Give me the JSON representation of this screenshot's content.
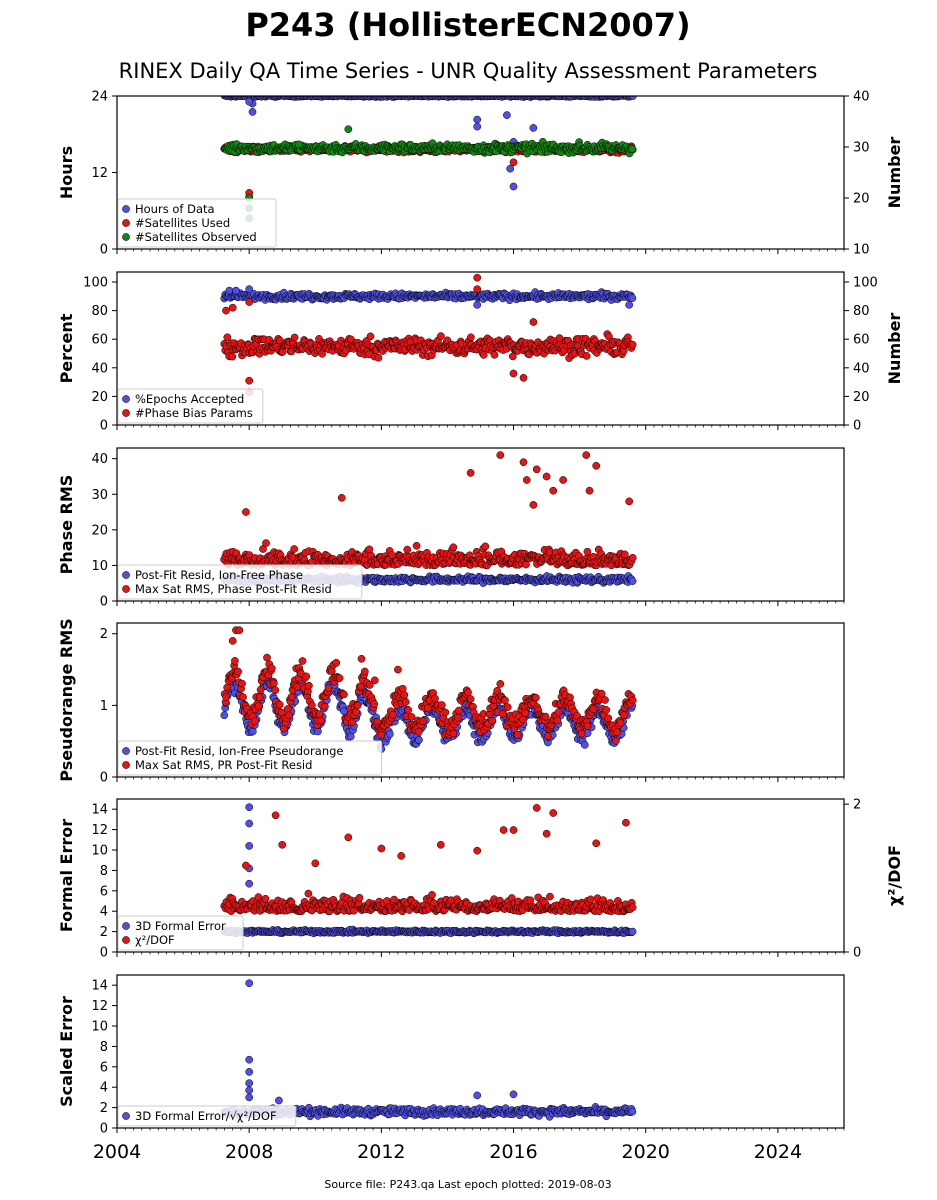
{
  "figure": {
    "title": "P243 (HollisterECN2007)",
    "subtitle": "RINEX Daily QA Time Series - UNR Quality Assessment Parameters",
    "footer": "Source file: P243.qa Last epoch plotted: 2019-08-03",
    "colors": {
      "blue": "#5050e6",
      "red": "#e61414",
      "green": "#118811",
      "edge": "#000000"
    }
  },
  "chart_data": [
    {
      "type": "scatter",
      "ylabel": "Hours",
      "ylim": [
        0,
        24
      ],
      "yticks": [
        0,
        12,
        24
      ],
      "right_ylabel": "Number",
      "right_ylim": [
        10,
        40
      ],
      "right_yticks": [
        10,
        20,
        30,
        40
      ],
      "xlim": [
        2004,
        2026
      ],
      "xticks": [
        2004,
        2008,
        2012,
        2016,
        2020,
        2024
      ],
      "legend": "lower-left",
      "series": [
        {
          "name": "Hours of Data",
          "color": "blue",
          "axis": "left",
          "base": 24.0,
          "noise": 0.1,
          "start": 2007.25,
          "end": 2019.6,
          "outliers": [
            [
              2008.1,
              22.8
            ],
            [
              2008.1,
              21.5
            ],
            [
              2015.8,
              21.0
            ],
            [
              2014.9,
              20.3
            ],
            [
              2014.9,
              19.2
            ],
            [
              2016.6,
              19.0
            ],
            [
              2016.0,
              16.8
            ],
            [
              2015.9,
              12.6
            ],
            [
              2016.0,
              9.8
            ],
            [
              2008.0,
              23.1
            ]
          ]
        },
        {
          "name": "#Satellites Used",
          "color": "red",
          "axis": "right",
          "base": 29.5,
          "noise": 0.4,
          "start": 2007.25,
          "end": 2019.6,
          "outliers": [
            [
              2008.0,
              20.2
            ],
            [
              2008.0,
              21.0
            ],
            [
              2016.0,
              27.0
            ]
          ]
        },
        {
          "name": "#Satellites Observed",
          "color": "green",
          "axis": "right",
          "base": 29.8,
          "noise": 0.6,
          "start": 2007.25,
          "end": 2019.6,
          "outliers": [
            [
              2008.0,
              16.0
            ],
            [
              2008.0,
              18.0
            ],
            [
              2008.0,
              20.0
            ],
            [
              2011.0,
              33.5
            ],
            [
              2009.5,
              30.5
            ]
          ]
        }
      ]
    },
    {
      "type": "scatter",
      "ylabel": "Percent",
      "ylim": [
        0,
        107
      ],
      "yticks": [
        0,
        20,
        40,
        60,
        80,
        100
      ],
      "right_ylabel": "Number",
      "right_ylim": [
        0,
        107
      ],
      "right_yticks": [
        0,
        20,
        40,
        60,
        80,
        100
      ],
      "xlim": [
        2004,
        2026
      ],
      "xticks": [
        2004,
        2008,
        2012,
        2016,
        2020,
        2024
      ],
      "legend": "lower-left",
      "series": [
        {
          "name": "%Epochs Accepted",
          "color": "blue",
          "axis": "left",
          "base": 90.0,
          "noise": 1.5,
          "start": 2007.25,
          "end": 2019.6,
          "outliers": [
            [
              2007.4,
              94
            ],
            [
              2007.6,
              94
            ],
            [
              2008.0,
              95
            ],
            [
              2014.9,
              84
            ],
            [
              2019.5,
              84
            ]
          ]
        },
        {
          "name": "#Phase Bias Params",
          "color": "red",
          "axis": "right",
          "base": 55.0,
          "noise": 4.5,
          "start": 2007.25,
          "end": 2019.6,
          "outliers": [
            [
              2014.9,
              103
            ],
            [
              2014.9,
              95
            ],
            [
              2007.3,
              80
            ],
            [
              2007.5,
              82
            ],
            [
              2008.0,
              31
            ],
            [
              2008.0,
              23
            ],
            [
              2016.0,
              36
            ],
            [
              2016.3,
              33
            ],
            [
              2016.6,
              72
            ],
            [
              2008.0,
              86
            ]
          ]
        }
      ]
    },
    {
      "type": "scatter",
      "ylabel": "Phase RMS",
      "ylim": [
        0,
        43
      ],
      "yticks": [
        0,
        10,
        20,
        30,
        40
      ],
      "xlim": [
        2004,
        2026
      ],
      "xticks": [
        2004,
        2008,
        2012,
        2016,
        2020,
        2024
      ],
      "legend": "lower-left",
      "series": [
        {
          "name": "Post-Fit Resid, Ion-Free Phase",
          "color": "blue",
          "axis": "left",
          "base": 6.0,
          "noise": 0.6,
          "start": 2007.25,
          "end": 2019.6,
          "outliers": []
        },
        {
          "name": "Max Sat RMS, Phase Post-Fit Resid",
          "color": "red",
          "axis": "left",
          "base": 10.0,
          "noise": 3.5,
          "start": 2007.25,
          "end": 2019.6,
          "outliers": [
            [
              2014.7,
              36
            ],
            [
              2015.6,
              41
            ],
            [
              2016.3,
              39
            ],
            [
              2016.4,
              34
            ],
            [
              2016.7,
              37
            ],
            [
              2017.0,
              35
            ],
            [
              2017.2,
              31
            ],
            [
              2017.5,
              34
            ],
            [
              2018.2,
              41
            ],
            [
              2018.5,
              38
            ],
            [
              2018.3,
              31
            ],
            [
              2019.5,
              28
            ],
            [
              2010.8,
              29
            ],
            [
              2007.9,
              25
            ],
            [
              2016.6,
              27
            ]
          ]
        }
      ]
    },
    {
      "type": "scatter",
      "ylabel": "Pseudorange RMS",
      "ylim": [
        0,
        2.15
      ],
      "yticks": [
        0,
        1,
        2
      ],
      "xlim": [
        2004,
        2026
      ],
      "xticks": [
        2004,
        2008,
        2012,
        2016,
        2020,
        2024
      ],
      "legend": "lower-left",
      "series": [
        {
          "name": "Post-Fit Resid, Ion-Free Pseudorange",
          "color": "blue",
          "axis": "left",
          "base": 0.75,
          "noise": 0.08,
          "start": 2007.25,
          "end": 2019.6,
          "outliers": []
        },
        {
          "name": "Max Sat RMS, PR Post-Fit Resid",
          "color": "red",
          "axis": "left",
          "base": 0.9,
          "noise": 0.12,
          "start": 2007.25,
          "end": 2019.6,
          "outliers": [
            [
              2007.6,
              2.05
            ],
            [
              2007.7,
              2.05
            ],
            [
              2007.5,
              1.9
            ],
            [
              2011.4,
              1.65
            ],
            [
              2012.5,
              1.5
            ],
            [
              2011.8,
              1.35
            ],
            [
              2015.6,
              1.3
            ]
          ]
        }
      ]
    },
    {
      "type": "scatter",
      "ylabel": "Formal Error",
      "ylim": [
        0,
        15
      ],
      "yticks": [
        0,
        2,
        4,
        6,
        8,
        10,
        12,
        14
      ],
      "right_ylabel": "χ²/DOF",
      "right_ylim": [
        0,
        2.07
      ],
      "right_yticks": [
        0,
        2
      ],
      "xlim": [
        2004,
        2026
      ],
      "xticks": [
        2004,
        2008,
        2012,
        2016,
        2020,
        2024
      ],
      "legend": "lower-left",
      "series": [
        {
          "name": "3D Formal Error",
          "color": "blue",
          "axis": "left",
          "base": 2.0,
          "noise": 0.1,
          "start": 2007.25,
          "end": 2019.6,
          "outliers": [
            [
              2008.0,
              14.2
            ],
            [
              2008.0,
              12.6
            ],
            [
              2008.0,
              10.4
            ],
            [
              2008.0,
              8.2
            ],
            [
              2008.0,
              6.7
            ]
          ]
        },
        {
          "name": "χ²/DOF",
          "color": "red",
          "axis": "right",
          "base": 0.55,
          "noise": 0.12,
          "start": 2007.25,
          "end": 2019.6,
          "outliers": [
            [
              2016.7,
              1.95
            ],
            [
              2017.2,
              1.88
            ],
            [
              2008.8,
              1.85
            ],
            [
              2019.4,
              1.75
            ],
            [
              2017.0,
              1.6
            ],
            [
              2015.7,
              1.65
            ],
            [
              2016.0,
              1.65
            ],
            [
              2011.0,
              1.55
            ],
            [
              2013.8,
              1.45
            ],
            [
              2012.0,
              1.4
            ],
            [
              2014.9,
              1.37
            ],
            [
              2009.0,
              1.45
            ],
            [
              2018.5,
              1.47
            ],
            [
              2012.6,
              1.3
            ],
            [
              2010.0,
              1.2
            ],
            [
              2007.9,
              1.17
            ]
          ]
        }
      ]
    },
    {
      "type": "scatter",
      "ylabel": "Scaled Error",
      "ylim": [
        0,
        15
      ],
      "yticks": [
        0,
        2,
        4,
        6,
        8,
        10,
        12,
        14
      ],
      "xlim": [
        2004,
        2026
      ],
      "xticks": [
        2004,
        2008,
        2012,
        2016,
        2020,
        2024
      ],
      "legend": "lower-left",
      "series": [
        {
          "name": "3D Formal Error/√χ²/DOF",
          "color": "blue",
          "axis": "left",
          "base": 1.6,
          "noise": 0.25,
          "start": 2007.25,
          "end": 2019.6,
          "outliers": [
            [
              2008.0,
              14.2
            ],
            [
              2008.0,
              6.7
            ],
            [
              2008.0,
              5.5
            ],
            [
              2008.0,
              4.4
            ],
            [
              2008.0,
              3.7
            ],
            [
              2008.0,
              3.0
            ],
            [
              2016.0,
              3.3
            ],
            [
              2014.9,
              3.2
            ],
            [
              2008.9,
              2.7
            ]
          ]
        }
      ]
    }
  ]
}
